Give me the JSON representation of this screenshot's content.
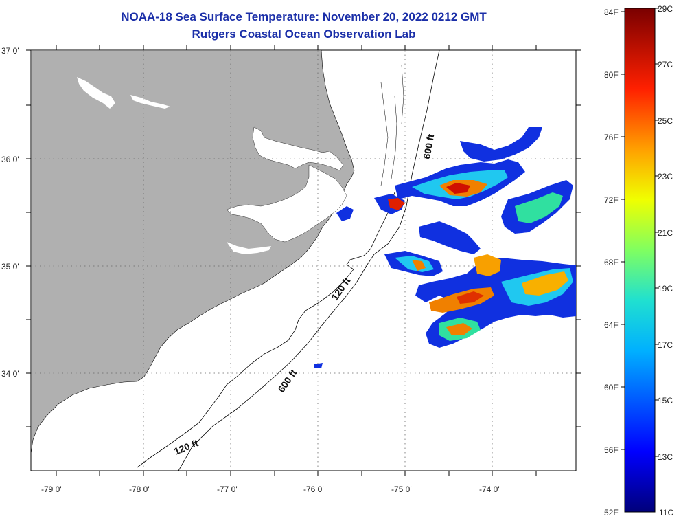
{
  "title": {
    "line1": "NOAA-18 Sea Surface Temperature:  November 20, 2022 0212 GMT",
    "line2": "Rutgers Coastal Ocean Observation Lab"
  },
  "axes": {
    "x_ticks": [
      "-79 0'",
      "-78 0'",
      "-77 0'",
      "-76 0'",
      "-75 0'",
      "-74 0'"
    ],
    "y_ticks": [
      "37 0'",
      "36 0'",
      "35 0'",
      "34 0'"
    ]
  },
  "contours": {
    "label_600_north": "600 ft",
    "label_120_mid": "120 ft",
    "label_600_south": "600 ft",
    "label_120_south": "120 ft"
  },
  "colorbar": {
    "fahrenheit": [
      "84F",
      "80F",
      "76F",
      "72F",
      "68F",
      "64F",
      "60F",
      "56F",
      "52F"
    ],
    "celsius": [
      "29C",
      "27C",
      "25C",
      "23C",
      "21C",
      "19C",
      "17C",
      "15C",
      "13C",
      "11C"
    ]
  },
  "colors": {
    "land": "#b0b0b0",
    "title": "#1a2ea8",
    "ocean": "#ffffff"
  }
}
